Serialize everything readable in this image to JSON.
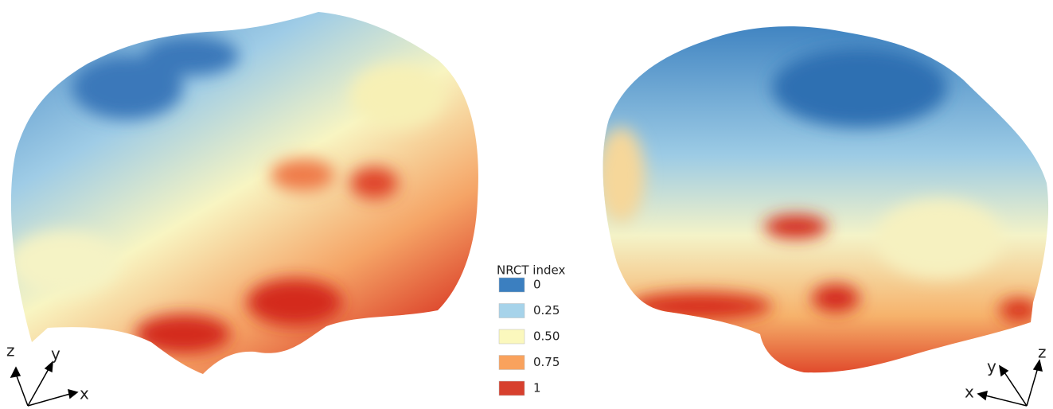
{
  "legend": {
    "title": "NRCT index",
    "items": [
      {
        "label": "0",
        "color": "#3b7fc0"
      },
      {
        "label": "0.25",
        "color": "#a6d3ea"
      },
      {
        "label": "0.50",
        "color": "#fbf8bd"
      },
      {
        "label": "0.75",
        "color": "#f9a25d"
      },
      {
        "label": "1",
        "color": "#d7402e"
      }
    ]
  },
  "left_axes": {
    "z": "z",
    "y": "y",
    "x": "x"
  },
  "right_axes": {
    "z": "z",
    "y": "y",
    "x": "x"
  }
}
